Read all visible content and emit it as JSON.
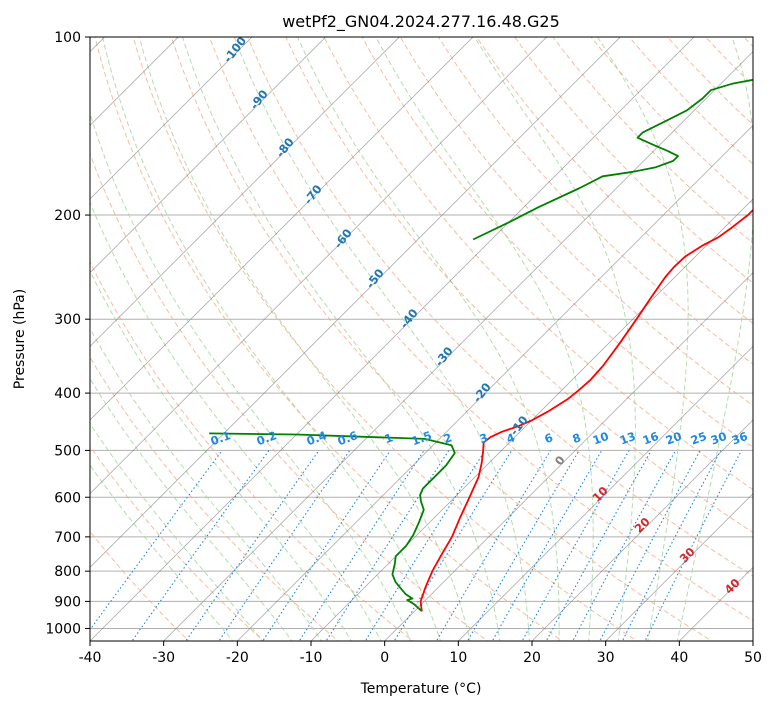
{
  "chart_data": {
    "type": "line",
    "title": "wetPf2_GN04.2024.277.16.48.G25",
    "xlabel": "Temperature (°C)",
    "ylabel": "Pressure (hPa)",
    "xlim": [
      -40,
      50
    ],
    "ylim": [
      1050,
      100
    ],
    "y_scale": "log",
    "grid": true,
    "x_ticks": [
      "-40",
      "-30",
      "-20",
      "-10",
      "0",
      "10",
      "20",
      "30",
      "40",
      "50"
    ],
    "y_ticks": [
      "100",
      "200",
      "300",
      "400",
      "500",
      "600",
      "700",
      "800",
      "900",
      "1000"
    ],
    "colors": {
      "temperature": "#ff0000",
      "dewpoint": "#008000",
      "isotherm": "#808080",
      "dry_adiabat": "#f4a582",
      "moist_adiabat": "#a6d6a0",
      "mixing_ratio": "#1e88e5",
      "saturated_adiabat_label": "#1f77b4",
      "dry_adiabat_label": "#d62728"
    },
    "series": [
      {
        "name": "",
        "role": "temperature",
        "points": [
          [
            1,
            935
          ],
          [
            -0.5,
            900
          ],
          [
            -1.8,
            850
          ],
          [
            -3,
            800
          ],
          [
            -4,
            750
          ],
          [
            -5,
            700
          ],
          [
            -6.5,
            650
          ],
          [
            -8,
            600
          ],
          [
            -9.5,
            555
          ],
          [
            -11,
            525
          ],
          [
            -12.5,
            500
          ],
          [
            -13.5,
            485
          ],
          [
            -13.3,
            475
          ],
          [
            -12.5,
            465
          ],
          [
            -11,
            455
          ],
          [
            -10,
            445
          ],
          [
            -9,
            430
          ],
          [
            -8,
            410
          ],
          [
            -7.7,
            395
          ],
          [
            -7.5,
            380
          ],
          [
            -7.7,
            360
          ],
          [
            -8.5,
            330
          ],
          [
            -9.5,
            300
          ],
          [
            -10.5,
            275
          ],
          [
            -11.3,
            255
          ],
          [
            -11.5,
            245
          ],
          [
            -11.4,
            235
          ],
          [
            -10.5,
            225
          ],
          [
            -9.5,
            218
          ],
          [
            -9,
            210
          ],
          [
            -8.5,
            200
          ],
          [
            -8.5,
            190
          ],
          [
            -8.8,
            175
          ],
          [
            -9.5,
            163
          ],
          [
            -9.7,
            155
          ],
          [
            -9.5,
            150
          ],
          [
            -9,
            145
          ],
          [
            -8.5,
            140
          ],
          [
            -8,
            137
          ],
          [
            -7.5,
            130
          ],
          [
            -7.5,
            122
          ],
          [
            -7.5,
            115
          ],
          [
            -7.6,
            108
          ],
          [
            -8,
            100
          ]
        ]
      },
      {
        "name": "",
        "role": "dewpoint",
        "points": [
          [
            1,
            935
          ],
          [
            -1,
            910
          ],
          [
            -2.5,
            895
          ],
          [
            -2,
            890
          ],
          [
            -3.5,
            875
          ],
          [
            -5,
            855
          ],
          [
            -6.5,
            835
          ],
          [
            -8,
            810
          ],
          [
            -9,
            780
          ],
          [
            -10,
            755
          ],
          [
            -10,
            725
          ],
          [
            -10.5,
            695
          ],
          [
            -11.5,
            660
          ],
          [
            -12.5,
            630
          ],
          [
            -14,
            610
          ],
          [
            -15,
            595
          ],
          [
            -15.5,
            580
          ],
          [
            -15.5,
            555
          ],
          [
            -15.5,
            530
          ],
          [
            -16,
            505
          ],
          [
            -17.5,
            490
          ],
          [
            -22,
            478
          ],
          [
            -40,
            470
          ],
          [
            -52,
            468
          ]
        ]
      },
      {
        "name": "",
        "role": "dewpoint-upper",
        "points": [
          [
            -42.5,
            220
          ],
          [
            -40,
            206
          ],
          [
            -38,
            194
          ],
          [
            -35,
            180
          ],
          [
            -33.5,
            172
          ],
          [
            -30,
            169
          ],
          [
            -27.5,
            166
          ],
          [
            -26,
            162
          ],
          [
            -26,
            159
          ],
          [
            -28,
            156
          ],
          [
            -31,
            152
          ],
          [
            -34,
            148
          ],
          [
            -34,
            145
          ],
          [
            -32.5,
            139
          ],
          [
            -31,
            133
          ],
          [
            -30.5,
            127
          ],
          [
            -30.5,
            123
          ],
          [
            -28.5,
            120
          ],
          [
            -26,
            118
          ],
          [
            -24.5,
            117
          ],
          [
            -24,
            115
          ],
          [
            -22.5,
            112
          ],
          [
            -21,
            108
          ],
          [
            -20.5,
            105
          ],
          [
            -20,
            103
          ],
          [
            -18,
            102
          ],
          [
            -15.5,
            100
          ]
        ]
      }
    ],
    "mixing_ratio_labels": [
      "0.1",
      "0.2",
      "0.4",
      "0.6",
      "1",
      "1.5",
      "2",
      "3",
      "4",
      "6",
      "8",
      "10",
      "13",
      "16",
      "20",
      "25",
      "30",
      "36"
    ],
    "saturated_adiabat_labels": [
      "-100",
      "-90",
      "-80",
      "-70",
      "-60",
      "-50",
      "-40",
      "-30",
      "-20",
      "-10",
      "0"
    ],
    "dry_adiabat_labels": [
      "10",
      "20",
      "30",
      "40"
    ]
  }
}
